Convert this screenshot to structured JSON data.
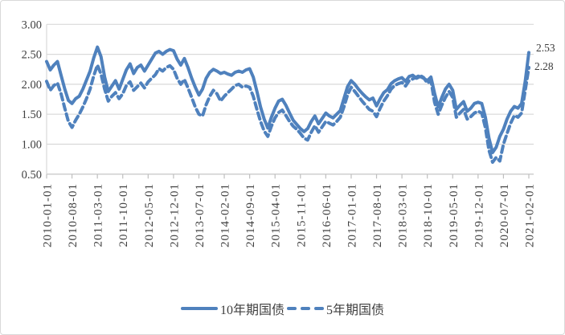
{
  "colors": {
    "line_blue": "#4F81BD",
    "grid": "#D9D9D9",
    "axis": "#BFBFBF",
    "text": "#404040",
    "background": "#FFFFFF",
    "frame_border": "#D9D9D9"
  },
  "annotations": {
    "end_label_10y": "2.53",
    "end_label_5y": "2.28"
  },
  "legend": {
    "item_10y": "10年期国债",
    "item_5y": "5年期国债"
  },
  "chart_data": {
    "type": "line",
    "title": "",
    "xlabel": "",
    "ylabel": "",
    "grid": true,
    "legend_position": "bottom",
    "y_axis": {
      "min": 0.5,
      "max": 3.0,
      "tick_values": [
        0.5,
        1.0,
        1.5,
        2.0,
        2.5,
        3.0
      ],
      "tick_labels": [
        "0.50",
        "1.00",
        "1.50",
        "2.00",
        "2.50",
        "3.00"
      ]
    },
    "x_axis": {
      "unit": "month",
      "months_per_tick": 7,
      "tick_labels": [
        "2010-01-01",
        "2010-08-01",
        "2011-03-01",
        "2011-10-01",
        "2012-05-01",
        "2012-12-01",
        "2013-07-01",
        "2014-02-01",
        "2014-09-01",
        "2015-04-01",
        "2015-11-01",
        "2016-06-01",
        "2017-01-01",
        "2017-08-01",
        "2018-03-01",
        "2018-10-01",
        "2019-05-01",
        "2019-12-01",
        "2020-07-01",
        "2021-02-01"
      ]
    },
    "series": [
      {
        "name": "10年期国债",
        "line_style": "solid",
        "color": "#4F81BD",
        "end_label": "2.53",
        "values": [
          2.38,
          2.24,
          2.32,
          2.38,
          2.15,
          1.92,
          1.73,
          1.68,
          1.76,
          1.8,
          1.92,
          2.07,
          2.22,
          2.44,
          2.62,
          2.46,
          2.12,
          1.88,
          1.97,
          2.06,
          1.92,
          2.08,
          2.24,
          2.34,
          2.18,
          2.28,
          2.32,
          2.22,
          2.32,
          2.42,
          2.52,
          2.55,
          2.5,
          2.55,
          2.58,
          2.56,
          2.42,
          2.32,
          2.43,
          2.28,
          2.1,
          1.95,
          1.82,
          1.92,
          2.1,
          2.2,
          2.25,
          2.22,
          2.18,
          2.2,
          2.17,
          2.15,
          2.2,
          2.22,
          2.2,
          2.24,
          2.26,
          2.12,
          1.88,
          1.62,
          1.42,
          1.27,
          1.45,
          1.6,
          1.72,
          1.75,
          1.65,
          1.52,
          1.4,
          1.33,
          1.26,
          1.21,
          1.26,
          1.38,
          1.47,
          1.34,
          1.43,
          1.52,
          1.47,
          1.44,
          1.5,
          1.56,
          1.76,
          1.96,
          2.06,
          2.0,
          1.92,
          1.85,
          1.79,
          1.74,
          1.77,
          1.64,
          1.76,
          1.86,
          1.91,
          2.01,
          2.06,
          2.09,
          2.11,
          2.05,
          2.13,
          2.15,
          2.1,
          2.13,
          2.1,
          2.06,
          2.12,
          1.85,
          1.62,
          1.78,
          1.92,
          2.0,
          1.9,
          1.58,
          1.65,
          1.71,
          1.55,
          1.6,
          1.68,
          1.7,
          1.68,
          1.45,
          1.1,
          0.86,
          0.95,
          1.13,
          1.25,
          1.42,
          1.55,
          1.63,
          1.6,
          1.68,
          2.05,
          2.53
        ]
      },
      {
        "name": "5年期国债",
        "line_style": "dashed",
        "color": "#4F81BD",
        "end_label": "2.28",
        "values": [
          2.05,
          1.9,
          1.98,
          2.02,
          1.84,
          1.6,
          1.38,
          1.28,
          1.4,
          1.5,
          1.62,
          1.76,
          1.92,
          2.14,
          2.32,
          2.17,
          1.92,
          1.72,
          1.8,
          1.86,
          1.76,
          1.84,
          1.98,
          2.04,
          1.9,
          1.96,
          2.02,
          1.94,
          2.04,
          2.1,
          2.16,
          2.26,
          2.22,
          2.28,
          2.31,
          2.25,
          2.1,
          2.0,
          2.08,
          1.94,
          1.78,
          1.62,
          1.5,
          1.47,
          1.66,
          1.8,
          1.9,
          1.84,
          1.72,
          1.8,
          1.86,
          1.92,
          1.98,
          2.0,
          1.95,
          1.97,
          1.95,
          1.8,
          1.58,
          1.38,
          1.22,
          1.13,
          1.3,
          1.44,
          1.53,
          1.57,
          1.48,
          1.38,
          1.3,
          1.25,
          1.18,
          1.1,
          1.07,
          1.2,
          1.31,
          1.2,
          1.29,
          1.38,
          1.35,
          1.32,
          1.38,
          1.45,
          1.62,
          1.82,
          1.95,
          1.88,
          1.8,
          1.72,
          1.65,
          1.58,
          1.55,
          1.46,
          1.6,
          1.72,
          1.81,
          1.92,
          1.98,
          2.01,
          2.03,
          1.97,
          2.06,
          2.09,
          2.12,
          2.15,
          2.11,
          2.02,
          2.06,
          1.7,
          1.5,
          1.65,
          1.78,
          1.88,
          1.78,
          1.45,
          1.52,
          1.58,
          1.42,
          1.46,
          1.52,
          1.55,
          1.52,
          1.28,
          0.9,
          0.7,
          0.78,
          0.72,
          1.0,
          1.18,
          1.35,
          1.48,
          1.45,
          1.52,
          1.9,
          2.28
        ]
      }
    ]
  }
}
